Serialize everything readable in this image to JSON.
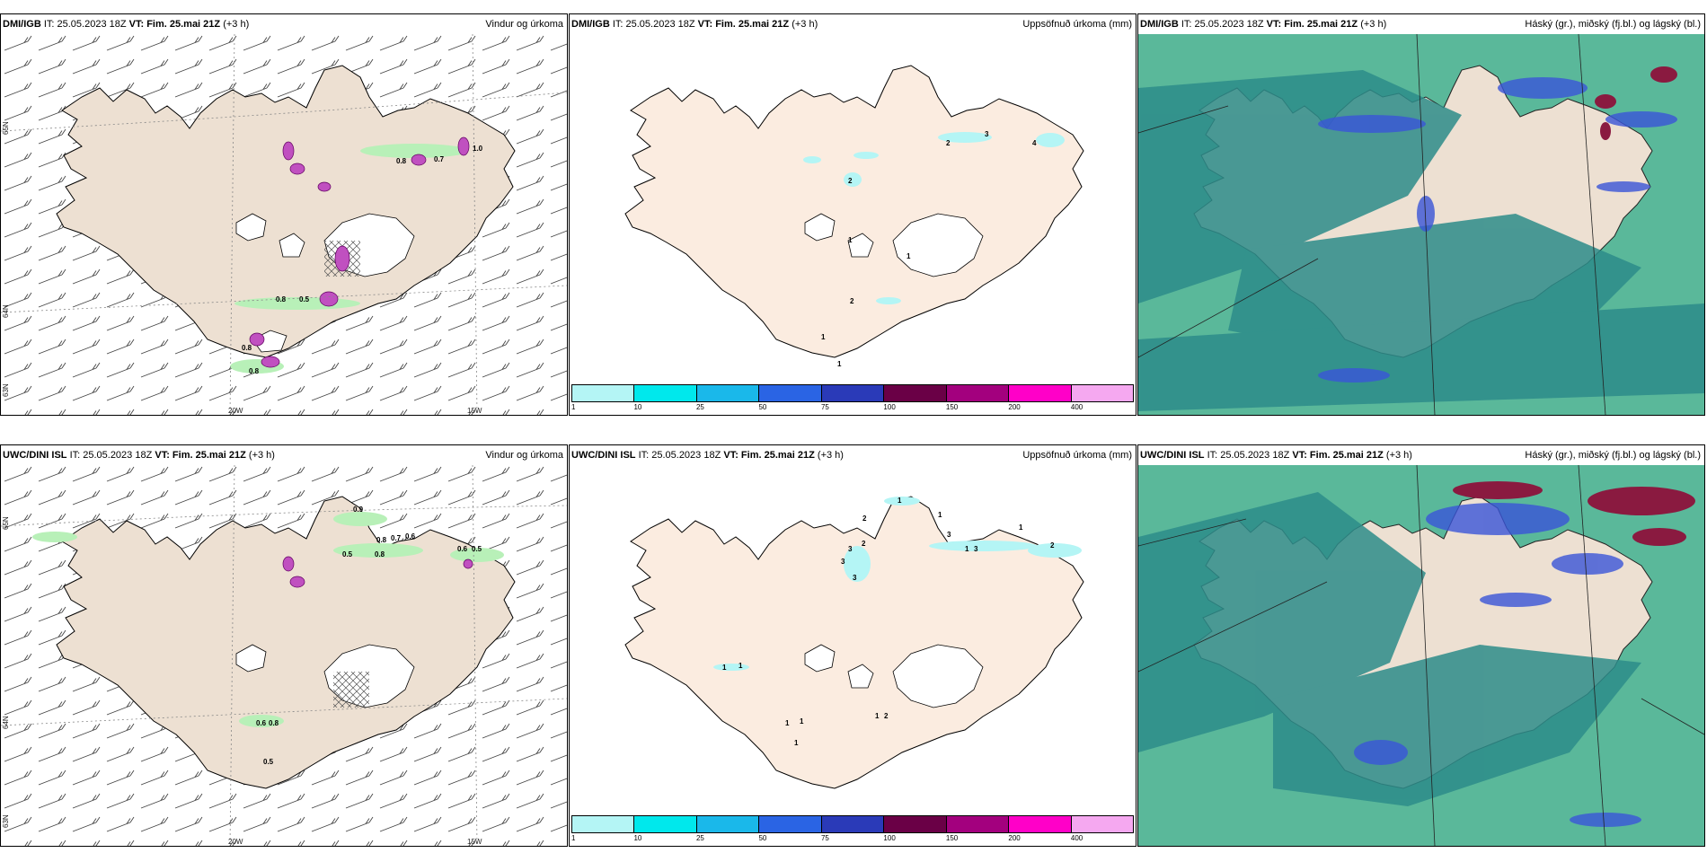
{
  "panels": [
    {
      "model": "DMI/IGB",
      "it": "IT: 25.05.2023 18Z",
      "vt_prefix": "VT:",
      "vt": "Fim. 25.mai 21Z",
      "lead": "(+3 h)",
      "title": "Vindur og úrkoma",
      "lon_labels": [
        "20W",
        "15W"
      ],
      "lat_labels": [
        "65N",
        "64N",
        "63N"
      ],
      "labels": [
        "0.8",
        "0.5",
        "1.0",
        "0.8",
        "0.7",
        "0.8",
        "0.8"
      ]
    },
    {
      "model": "DMI/IGB",
      "it": "IT: 25.05.2023 18Z",
      "vt_prefix": "VT:",
      "vt": "Fim. 25.mai 21Z",
      "lead": "(+3 h)",
      "title": "Uppsöfnuð úrkoma (mm)",
      "labels": [
        "3",
        "2",
        "2",
        "4",
        "1",
        "1",
        "2",
        "1",
        "1"
      ]
    },
    {
      "model": "DMI/IGB",
      "it": "IT: 25.05.2023 18Z",
      "vt_prefix": "VT:",
      "vt": "Fim. 25.mai 21Z",
      "lead": "(+3 h)",
      "title": "Háský (gr.), miðský (fj.bl.) og lágský (bl.)"
    },
    {
      "model": "UWC/DINI ISL",
      "it": "IT: 25.05.2023 18Z",
      "vt_prefix": "VT:",
      "vt": "Fim. 25.mai 21Z",
      "lead": "(+3 h)",
      "title": "Vindur og úrkoma",
      "lon_labels": [
        "20W",
        "15W"
      ],
      "lat_labels": [
        "65N",
        "64N",
        "63N"
      ],
      "labels": [
        "0.9",
        "0.8",
        "0.7",
        "0.6",
        "0.5",
        "0.8",
        "0.6",
        "0.5",
        "0.6",
        "0.8",
        "0.5"
      ]
    },
    {
      "model": "UWC/DINI ISL",
      "it": "IT: 25.05.2023 18Z",
      "vt_prefix": "VT:",
      "vt": "Fim. 25.mai 21Z",
      "lead": "(+3 h)",
      "title": "Uppsöfnuð úrkoma (mm)",
      "labels": [
        "1",
        "2",
        "3",
        "2",
        "3",
        "3",
        "1",
        "3",
        "1",
        "2",
        "1",
        "3",
        "1",
        "1",
        "1",
        "1",
        "2",
        "1",
        "1"
      ]
    },
    {
      "model": "UWC/DINI ISL",
      "it": "IT: 25.05.2023 18Z",
      "vt_prefix": "VT:",
      "vt": "Fim. 25.mai 21Z",
      "lead": "(+3 h)",
      "title": "Háský (gr.), miðský (fj.bl.) og lágský (bl.)"
    }
  ],
  "colorbar": {
    "ticks": [
      "1",
      "10",
      "25",
      "50",
      "75",
      "100",
      "150",
      "200",
      "400"
    ],
    "colors": [
      "#b4f5f5",
      "#00e8ec",
      "#1ab8ea",
      "#2a64e4",
      "#2a3ab8",
      "#6a0046",
      "#a3007e",
      "#ff00c8",
      "#f5a8f0"
    ]
  },
  "colors": {
    "land": "#ede0d2",
    "land_precip": "#fbece0",
    "precip_green": "#b8f0b8",
    "cloud_low": "#2d8c8a",
    "cloud_mid": "#3a55d8",
    "cloud_high": "#8a1a40",
    "sea_cloud": "#5ab89a"
  }
}
